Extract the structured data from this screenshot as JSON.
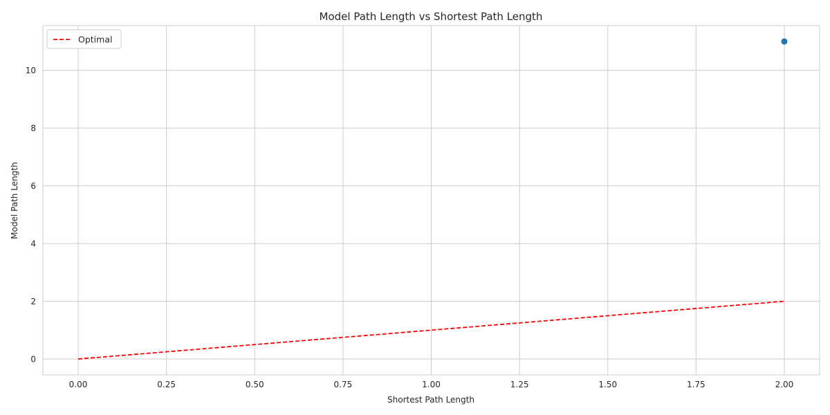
{
  "chart_data": {
    "type": "scatter",
    "title": "Model Path Length vs Shortest Path Length",
    "xlabel": "Shortest Path Length",
    "ylabel": "Model Path Length",
    "xlim": [
      -0.1,
      2.1
    ],
    "ylim": [
      -0.55,
      11.55
    ],
    "xticks": [
      0.0,
      0.25,
      0.5,
      0.75,
      1.0,
      1.25,
      1.5,
      1.75,
      2.0
    ],
    "xtick_labels": [
      "0.00",
      "0.25",
      "0.50",
      "0.75",
      "1.00",
      "1.25",
      "1.50",
      "1.75",
      "2.00"
    ],
    "yticks": [
      0,
      2,
      4,
      6,
      8,
      10
    ],
    "ytick_labels": [
      "0",
      "2",
      "4",
      "6",
      "8",
      "10"
    ],
    "grid": true,
    "legend_placement": "upper-left",
    "series": [
      {
        "type": "scatter",
        "color": "#1f77b4",
        "points": [
          [
            2.0,
            11.0
          ]
        ]
      },
      {
        "type": "line",
        "name": "Optimal",
        "color": "#ff0000",
        "style": "dashed",
        "points": [
          [
            0.0,
            0.0
          ],
          [
            2.0,
            2.0
          ]
        ]
      }
    ]
  }
}
